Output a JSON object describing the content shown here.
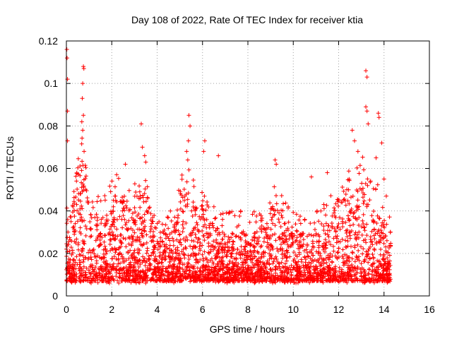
{
  "chart_data": {
    "type": "scatter",
    "title": "Day 108 of 2022, Rate Of TEC Index for receiver ktia",
    "xlabel": "GPS time / hours",
    "ylabel": "ROTI / TECUs",
    "xlim": [
      0,
      16
    ],
    "ylim": [
      0,
      0.12
    ],
    "xticks": [
      0,
      2,
      4,
      6,
      8,
      10,
      12,
      14,
      16
    ],
    "xtick_labels": [
      "0",
      "2",
      "4",
      "6",
      "8",
      "10",
      "12",
      "14",
      "16"
    ],
    "yticks": [
      0,
      0.02,
      0.04,
      0.06,
      0.08,
      0.1,
      0.12
    ],
    "ytick_labels": [
      "0",
      "0.02",
      "0.04",
      "0.06",
      "0.08",
      "0.1",
      "0.12"
    ],
    "grid": true,
    "marker": "+",
    "color": "#ff0000",
    "data_x_range": [
      0,
      14.3
    ],
    "notable_points": [
      {
        "x": 0.02,
        "y": 0.116
      },
      {
        "x": 0.03,
        "y": 0.112
      },
      {
        "x": 0.05,
        "y": 0.102
      },
      {
        "x": 0.05,
        "y": 0.087
      },
      {
        "x": 0.05,
        "y": 0.073
      },
      {
        "x": 0.75,
        "y": 0.108
      },
      {
        "x": 0.77,
        "y": 0.107
      },
      {
        "x": 0.72,
        "y": 0.1
      },
      {
        "x": 0.7,
        "y": 0.093
      },
      {
        "x": 0.75,
        "y": 0.085
      },
      {
        "x": 0.68,
        "y": 0.082
      },
      {
        "x": 0.72,
        "y": 0.078
      },
      {
        "x": 0.78,
        "y": 0.068
      },
      {
        "x": 3.3,
        "y": 0.081
      },
      {
        "x": 3.35,
        "y": 0.07
      },
      {
        "x": 3.45,
        "y": 0.066
      },
      {
        "x": 3.5,
        "y": 0.063
      },
      {
        "x": 5.4,
        "y": 0.085
      },
      {
        "x": 5.45,
        "y": 0.08
      },
      {
        "x": 5.38,
        "y": 0.073
      },
      {
        "x": 5.3,
        "y": 0.068
      },
      {
        "x": 5.35,
        "y": 0.064
      },
      {
        "x": 6.1,
        "y": 0.073
      },
      {
        "x": 6.05,
        "y": 0.068
      },
      {
        "x": 6.7,
        "y": 0.066
      },
      {
        "x": 2.6,
        "y": 0.062
      },
      {
        "x": 9.2,
        "y": 0.064
      },
      {
        "x": 9.25,
        "y": 0.062
      },
      {
        "x": 10.8,
        "y": 0.056
      },
      {
        "x": 11.5,
        "y": 0.058
      },
      {
        "x": 12.6,
        "y": 0.078
      },
      {
        "x": 12.7,
        "y": 0.073
      },
      {
        "x": 12.85,
        "y": 0.068
      },
      {
        "x": 13.2,
        "y": 0.106
      },
      {
        "x": 13.25,
        "y": 0.103
      },
      {
        "x": 13.2,
        "y": 0.089
      },
      {
        "x": 13.25,
        "y": 0.087
      },
      {
        "x": 13.3,
        "y": 0.081
      },
      {
        "x": 13.75,
        "y": 0.086
      },
      {
        "x": 13.78,
        "y": 0.084
      },
      {
        "x": 13.65,
        "y": 0.065
      },
      {
        "x": 13.9,
        "y": 0.072
      },
      {
        "x": 14.1,
        "y": 0.047
      },
      {
        "x": 14.0,
        "y": 0.055
      }
    ],
    "bulk_series": {
      "description": "dense scatter of ROTI values between 0.005 and about 0.035 TECUs across 0 to 14.3 h",
      "baseline_min": 0.005,
      "typical_max": 0.035
    }
  }
}
